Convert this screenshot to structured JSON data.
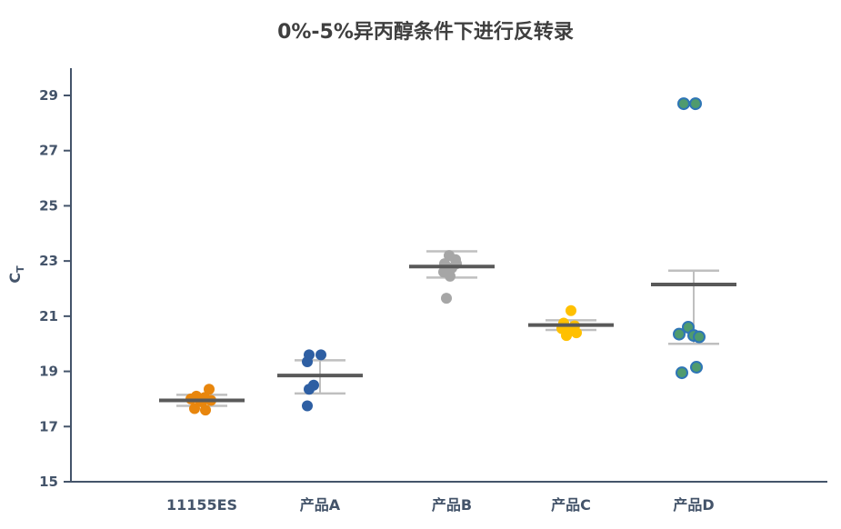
{
  "chart_data": {
    "type": "scatter",
    "title": "0%-5%异丙醇条件下进行反转录",
    "ylabel": {
      "main": "C",
      "sub": "T"
    },
    "xlabel": "",
    "ylim": [
      15,
      29.9
    ],
    "yticks": [
      15,
      17,
      19,
      21,
      23,
      25,
      27,
      29
    ],
    "grid": false,
    "legend": "none",
    "axis_color": "#44546a",
    "mean_bar_color": "#595959",
    "error_bar_color": "#bfbfbf",
    "categories": [
      "11155ES",
      "产品A",
      "产品B",
      "产品C",
      "产品D"
    ],
    "series": [
      {
        "name": "11155ES",
        "dot_color": "#e8860d",
        "dot_stroke": "",
        "points": [
          18.35,
          18.1,
          18.05,
          18.0,
          17.95,
          17.95,
          17.9,
          17.65,
          17.6
        ],
        "jitter": [
          8,
          -6,
          3,
          -12,
          10,
          -2,
          0,
          -8,
          4
        ],
        "mean": 17.95,
        "err_low": 17.75,
        "err_high": 18.15
      },
      {
        "name": "产品A",
        "dot_color": "#2e5fa3",
        "dot_stroke": "",
        "points": [
          19.6,
          19.6,
          19.35,
          18.5,
          18.35,
          17.75
        ],
        "jitter": [
          -12,
          1,
          -14,
          -7,
          -12,
          -14
        ],
        "mean": 18.85,
        "err_low": 18.2,
        "err_high": 19.4
      },
      {
        "name": "产品B",
        "dot_color": "#a6a6a6",
        "dot_stroke": "",
        "points": [
          23.2,
          23.05,
          22.9,
          22.9,
          22.75,
          22.6,
          22.45,
          21.65
        ],
        "jitter": [
          -3,
          4,
          -8,
          5,
          0,
          -9,
          -2,
          -6
        ],
        "mean": 22.8,
        "err_low": 22.4,
        "err_high": 23.35
      },
      {
        "name": "产品C",
        "dot_color": "#ffc000",
        "dot_stroke": "",
        "points": [
          21.2,
          20.75,
          20.65,
          20.55,
          20.45,
          20.4,
          20.3
        ],
        "jitter": [
          0,
          -8,
          4,
          -10,
          -2,
          6,
          -5
        ],
        "mean": 20.68,
        "err_low": 20.5,
        "err_high": 20.85
      },
      {
        "name": "产品D",
        "dot_color": "#4f9b6e",
        "dot_stroke": "#2e75b6",
        "points": [
          28.7,
          28.7,
          20.6,
          20.35,
          20.3,
          20.25,
          19.15,
          18.95
        ],
        "jitter": [
          -11,
          2,
          -6,
          -16,
          0,
          6,
          3,
          -13
        ],
        "mean": 22.15,
        "err_low": 20.0,
        "err_high": 22.65
      }
    ]
  }
}
